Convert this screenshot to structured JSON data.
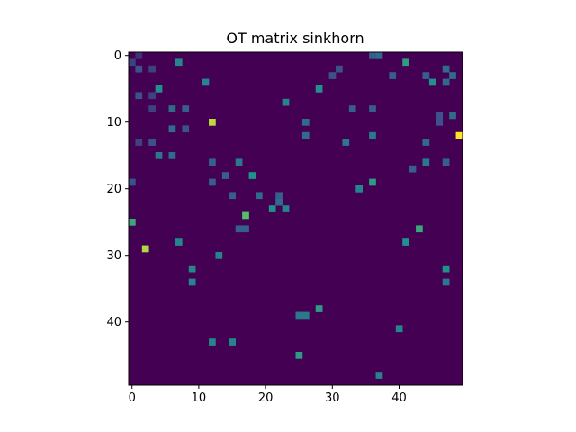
{
  "chart_data": {
    "type": "heatmap",
    "title": "OT matrix sinkhorn",
    "rows": 50,
    "cols": 50,
    "colormap": "viridis",
    "value_range": [
      0,
      1
    ],
    "background_value": 0,
    "xticks": [
      0,
      10,
      20,
      30,
      40
    ],
    "yticks": [
      0,
      10,
      20,
      30,
      40
    ],
    "grid": false,
    "cells": [
      [
        10,
        12,
        0.9
      ],
      [
        12,
        49,
        1.0
      ],
      [
        29,
        2,
        0.88
      ],
      [
        24,
        17,
        0.7
      ],
      [
        25,
        0,
        0.6
      ],
      [
        26,
        43,
        0.6
      ],
      [
        1,
        41,
        0.55
      ],
      [
        1,
        7,
        0.45
      ],
      [
        5,
        4,
        0.5
      ],
      [
        5,
        28,
        0.5
      ],
      [
        4,
        11,
        0.45
      ],
      [
        7,
        23,
        0.45
      ],
      [
        4,
        45,
        0.5
      ],
      [
        2,
        47,
        0.35
      ],
      [
        19,
        36,
        0.55
      ],
      [
        20,
        34,
        0.45
      ],
      [
        18,
        18,
        0.5
      ],
      [
        23,
        21,
        0.5
      ],
      [
        23,
        23,
        0.45
      ],
      [
        22,
        22,
        0.35
      ],
      [
        28,
        41,
        0.5
      ],
      [
        28,
        7,
        0.45
      ],
      [
        30,
        13,
        0.45
      ],
      [
        32,
        9,
        0.45
      ],
      [
        34,
        9,
        0.45
      ],
      [
        32,
        47,
        0.5
      ],
      [
        34,
        47,
        0.4
      ],
      [
        38,
        28,
        0.55
      ],
      [
        39,
        25,
        0.4
      ],
      [
        39,
        26,
        0.4
      ],
      [
        45,
        25,
        0.55
      ],
      [
        43,
        12,
        0.45
      ],
      [
        43,
        15,
        0.45
      ],
      [
        48,
        37,
        0.45
      ],
      [
        41,
        40,
        0.45
      ],
      [
        0,
        1,
        0.15
      ],
      [
        1,
        0,
        0.2
      ],
      [
        2,
        1,
        0.25
      ],
      [
        2,
        3,
        0.2
      ],
      [
        6,
        1,
        0.25
      ],
      [
        6,
        3,
        0.2
      ],
      [
        8,
        6,
        0.35
      ],
      [
        8,
        8,
        0.3
      ],
      [
        8,
        3,
        0.2
      ],
      [
        11,
        6,
        0.35
      ],
      [
        11,
        8,
        0.25
      ],
      [
        13,
        1,
        0.2
      ],
      [
        13,
        3,
        0.25
      ],
      [
        15,
        4,
        0.4
      ],
      [
        15,
        6,
        0.35
      ],
      [
        16,
        16,
        0.4
      ],
      [
        16,
        12,
        0.3
      ],
      [
        18,
        14,
        0.3
      ],
      [
        19,
        12,
        0.3
      ],
      [
        19,
        0,
        0.25
      ],
      [
        21,
        15,
        0.3
      ],
      [
        21,
        19,
        0.35
      ],
      [
        21,
        22,
        0.3
      ],
      [
        26,
        16,
        0.3
      ],
      [
        26,
        17,
        0.3
      ],
      [
        0,
        37,
        0.35
      ],
      [
        0,
        36,
        0.3
      ],
      [
        2,
        31,
        0.25
      ],
      [
        3,
        30,
        0.25
      ],
      [
        3,
        39,
        0.3
      ],
      [
        3,
        44,
        0.3
      ],
      [
        3,
        48,
        0.35
      ],
      [
        4,
        47,
        0.35
      ],
      [
        8,
        33,
        0.3
      ],
      [
        8,
        36,
        0.3
      ],
      [
        9,
        46,
        0.25
      ],
      [
        10,
        46,
        0.25
      ],
      [
        9,
        48,
        0.35
      ],
      [
        10,
        26,
        0.35
      ],
      [
        12,
        26,
        0.35
      ],
      [
        12,
        36,
        0.4
      ],
      [
        13,
        32,
        0.4
      ],
      [
        13,
        44,
        0.35
      ],
      [
        16,
        44,
        0.4
      ],
      [
        16,
        47,
        0.3
      ],
      [
        17,
        42,
        0.3
      ]
    ]
  }
}
